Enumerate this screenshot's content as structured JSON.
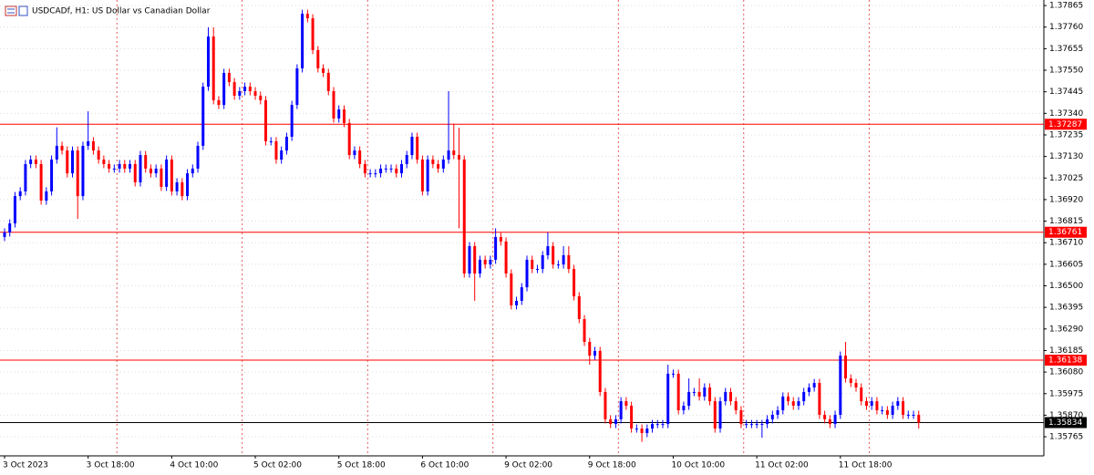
{
  "chart_data": {
    "type": "candlestick",
    "title": "USDCADf, H1:  US Dollar vs Canadian Dollar",
    "up_color": "#0000ff",
    "down_color": "#ff0000",
    "grid": true,
    "ylim": [
      1.35672,
      1.37892
    ],
    "yticks": [
      1.37865,
      {
        "value": 1.3776,
        "label": "1.37760"
      },
      1.37655,
      {
        "value": 1.3755,
        "label": "1.37550"
      },
      1.37445,
      {
        "value": 1.3734,
        "label": "1.37340"
      },
      1.37235,
      {
        "value": 1.3713,
        "label": "1.37130"
      },
      1.37025,
      {
        "value": 1.3692,
        "label": "1.36920"
      },
      1.36815,
      {
        "value": 1.3671,
        "label": "1.36710"
      },
      1.36605,
      {
        "value": 1.365,
        "label": "1.36500"
      },
      1.36395,
      {
        "value": 1.3629,
        "label": "1.36290"
      },
      1.36185,
      {
        "value": 1.3608,
        "label": "1.36080"
      },
      1.35975,
      {
        "value": 1.3587,
        "label": "1.35870"
      },
      1.35765
    ],
    "levels": [
      {
        "value": 1.37287,
        "color": "#ff0000"
      },
      {
        "value": 1.36761,
        "color": "#ff0000"
      },
      {
        "value": 1.36138,
        "color": "#ff0000"
      },
      {
        "value": 1.35834,
        "color": "#000000"
      }
    ],
    "categories": [
      "3 Oct 2023",
      null,
      null,
      null,
      null,
      null,
      null,
      null,
      null,
      null,
      null,
      null,
      null,
      null,
      null,
      null,
      "3 Oct 18:00",
      null,
      null,
      null,
      null,
      null,
      null,
      null,
      null,
      null,
      null,
      null,
      null,
      null,
      null,
      null,
      "4 Oct 10:00",
      null,
      null,
      null,
      null,
      null,
      null,
      null,
      null,
      null,
      null,
      null,
      null,
      null,
      null,
      null,
      "5 Oct 02:00",
      null,
      null,
      null,
      null,
      null,
      null,
      null,
      null,
      null,
      null,
      null,
      null,
      null,
      null,
      null,
      "5 Oct 18:00",
      null,
      null,
      null,
      null,
      null,
      null,
      null,
      null,
      null,
      null,
      null,
      null,
      null,
      null,
      null,
      "6 Oct 10:00",
      null,
      null,
      null,
      null,
      null,
      null,
      null,
      null,
      null,
      null,
      null,
      null,
      null,
      null,
      null,
      "9 Oct 02:00",
      null,
      null,
      null,
      null,
      null,
      null,
      null,
      null,
      null,
      null,
      null,
      null,
      null,
      null,
      null,
      "9 Oct 18:00",
      null,
      null,
      null,
      null,
      null,
      null,
      null,
      null,
      null,
      null,
      null,
      null,
      null,
      null,
      null,
      "10 Oct 10:00",
      null,
      null,
      null,
      null,
      null,
      null,
      null,
      null,
      null,
      null,
      null,
      null,
      null,
      null,
      null,
      "11 Oct 02:00",
      null,
      null,
      null,
      null,
      null,
      null,
      null,
      null,
      null,
      null,
      null,
      null,
      null,
      null,
      null,
      "11 Oct 18:00",
      null,
      null,
      null,
      null,
      null,
      null,
      null,
      null,
      null,
      null,
      null,
      null,
      null,
      null,
      null
    ],
    "candles": [
      [
        1.36738,
        1.3678,
        1.36718,
        1.3676
      ],
      [
        1.3676,
        1.36824,
        1.3674,
        1.36804
      ],
      [
        1.36804,
        1.36957,
        1.36784,
        1.36937
      ],
      [
        1.36937,
        1.3698,
        1.36917,
        1.3696
      ],
      [
        1.3696,
        1.37113,
        1.3694,
        1.37093
      ],
      [
        1.37093,
        1.37135,
        1.37073,
        1.37115
      ],
      [
        1.37115,
        1.37135,
        1.37073,
        1.37093
      ],
      [
        1.37093,
        1.37113,
        1.36895,
        1.36915
      ],
      [
        1.36915,
        1.3698,
        1.36895,
        1.3696
      ],
      [
        1.3696,
        1.37135,
        1.3694,
        1.37115
      ],
      [
        1.37115,
        1.37272,
        1.37095,
        1.37182
      ],
      [
        1.37182,
        1.37202,
        1.37139,
        1.37159
      ],
      [
        1.37159,
        1.37179,
        1.37028,
        1.37048
      ],
      [
        1.37048,
        1.37179,
        1.37028,
        1.37159
      ],
      [
        1.37159,
        1.37179,
        1.36826,
        1.36937
      ],
      [
        1.36937,
        1.37202,
        1.36917,
        1.37182
      ],
      [
        1.37182,
        1.3735,
        1.37162,
        1.37204
      ],
      [
        1.37204,
        1.37224,
        1.37139,
        1.37159
      ],
      [
        1.37159,
        1.37179,
        1.37095,
        1.37115
      ],
      [
        1.37115,
        1.37135,
        1.37073,
        1.37093
      ],
      [
        1.37093,
        1.37113,
        1.37051,
        1.37071
      ],
      [
        1.37071,
        1.37091,
        1.37051,
        1.37071
      ],
      [
        1.37071,
        1.37113,
        1.37051,
        1.37093
      ],
      [
        1.37093,
        1.37113,
        1.37051,
        1.37071
      ],
      [
        1.37071,
        1.37113,
        1.37051,
        1.37093
      ],
      [
        1.37093,
        1.37113,
        1.36984,
        1.37004
      ],
      [
        1.37004,
        1.37157,
        1.36984,
        1.37137
      ],
      [
        1.37137,
        1.37157,
        1.37051,
        1.37071
      ],
      [
        1.37071,
        1.37091,
        1.37028,
        1.37048
      ],
      [
        1.37048,
        1.37091,
        1.37028,
        1.37071
      ],
      [
        1.37071,
        1.37091,
        1.36962,
        1.36982
      ],
      [
        1.36982,
        1.37135,
        1.36962,
        1.37115
      ],
      [
        1.37115,
        1.37135,
        1.3694,
        1.3696
      ],
      [
        1.3696,
        1.37024,
        1.3694,
        1.37004
      ],
      [
        1.37004,
        1.37024,
        1.36917,
        1.36937
      ],
      [
        1.36937,
        1.37068,
        1.36917,
        1.37048
      ],
      [
        1.37048,
        1.37091,
        1.37028,
        1.37071
      ],
      [
        1.37071,
        1.37202,
        1.37051,
        1.37182
      ],
      [
        1.37182,
        1.3749,
        1.37162,
        1.3747
      ],
      [
        1.3747,
        1.37759,
        1.3745,
        1.37714
      ],
      [
        1.37714,
        1.37759,
        1.37384,
        1.37404
      ],
      [
        1.37404,
        1.37424,
        1.37361,
        1.37381
      ],
      [
        1.37381,
        1.37557,
        1.37361,
        1.37537
      ],
      [
        1.37537,
        1.37557,
        1.37472,
        1.37492
      ],
      [
        1.37492,
        1.37512,
        1.37406,
        1.37426
      ],
      [
        1.37426,
        1.37468,
        1.37406,
        1.37448
      ],
      [
        1.37448,
        1.3749,
        1.37428,
        1.3747
      ],
      [
        1.3747,
        1.3749,
        1.37428,
        1.37448
      ],
      [
        1.37448,
        1.37468,
        1.37406,
        1.37426
      ],
      [
        1.37426,
        1.37446,
        1.37384,
        1.37404
      ],
      [
        1.37404,
        1.37424,
        1.37184,
        1.37204
      ],
      [
        1.37204,
        1.37224,
        1.37184,
        1.37204
      ],
      [
        1.37204,
        1.37224,
        1.37095,
        1.37115
      ],
      [
        1.37115,
        1.37179,
        1.37095,
        1.37159
      ],
      [
        1.37159,
        1.37246,
        1.37139,
        1.37226
      ],
      [
        1.37226,
        1.37401,
        1.37206,
        1.37381
      ],
      [
        1.37381,
        1.37579,
        1.37361,
        1.37559
      ],
      [
        1.37559,
        1.37845,
        1.37539,
        1.37825
      ],
      [
        1.37825,
        1.37845,
        1.37783,
        1.37803
      ],
      [
        1.37803,
        1.37823,
        1.37628,
        1.37648
      ],
      [
        1.37648,
        1.37668,
        1.37539,
        1.37559
      ],
      [
        1.37559,
        1.37579,
        1.37517,
        1.37537
      ],
      [
        1.37537,
        1.37557,
        1.37428,
        1.37448
      ],
      [
        1.37448,
        1.37468,
        1.37295,
        1.37315
      ],
      [
        1.37315,
        1.37379,
        1.37295,
        1.37359
      ],
      [
        1.37359,
        1.37379,
        1.37273,
        1.37293
      ],
      [
        1.37293,
        1.37313,
        1.37117,
        1.37137
      ],
      [
        1.37137,
        1.37179,
        1.37117,
        1.37159
      ],
      [
        1.37159,
        1.37179,
        1.37073,
        1.37093
      ],
      [
        1.37093,
        1.37113,
        1.37028,
        1.37048
      ],
      [
        1.37048,
        1.37068,
        1.37028,
        1.37048
      ],
      [
        1.37048,
        1.37068,
        1.37028,
        1.37048
      ],
      [
        1.37048,
        1.37091,
        1.37028,
        1.37071
      ],
      [
        1.37071,
        1.37091,
        1.37051,
        1.37071
      ],
      [
        1.37071,
        1.37091,
        1.37051,
        1.37071
      ],
      [
        1.37071,
        1.37091,
        1.37028,
        1.37048
      ],
      [
        1.37048,
        1.37113,
        1.37028,
        1.37093
      ],
      [
        1.37093,
        1.37157,
        1.37073,
        1.37137
      ],
      [
        1.37137,
        1.37246,
        1.37117,
        1.37226
      ],
      [
        1.37226,
        1.37246,
        1.37095,
        1.37115
      ],
      [
        1.37115,
        1.37135,
        1.3694,
        1.3696
      ],
      [
        1.3696,
        1.37135,
        1.3694,
        1.37115
      ],
      [
        1.37115,
        1.37135,
        1.37073,
        1.37093
      ],
      [
        1.37093,
        1.37113,
        1.37051,
        1.37071
      ],
      [
        1.37071,
        1.37135,
        1.37051,
        1.37115
      ],
      [
        1.37115,
        1.37448,
        1.37095,
        1.37159
      ],
      [
        1.37159,
        1.3729,
        1.37117,
        1.37137
      ],
      [
        1.37137,
        1.3727,
        1.3678,
        1.37115
      ],
      [
        1.37115,
        1.37135,
        1.3654,
        1.3656
      ],
      [
        1.3656,
        1.36713,
        1.3654,
        1.36693
      ],
      [
        1.36693,
        1.36713,
        1.36427,
        1.3656
      ],
      [
        1.3656,
        1.36647,
        1.3654,
        1.36627
      ],
      [
        1.36627,
        1.36647,
        1.36584,
        1.36604
      ],
      [
        1.36604,
        1.36647,
        1.36584,
        1.36627
      ],
      [
        1.36627,
        1.3678,
        1.36607,
        1.36738
      ],
      [
        1.36738,
        1.36758,
        1.36696,
        1.36716
      ],
      [
        1.36716,
        1.36736,
        1.3654,
        1.3656
      ],
      [
        1.3656,
        1.3658,
        1.36385,
        1.36405
      ],
      [
        1.36405,
        1.36447,
        1.36385,
        1.36427
      ],
      [
        1.36427,
        1.36513,
        1.36407,
        1.36493
      ],
      [
        1.36493,
        1.36647,
        1.36473,
        1.36627
      ],
      [
        1.36627,
        1.36647,
        1.36562,
        1.36582
      ],
      [
        1.36582,
        1.36602,
        1.36562,
        1.36582
      ],
      [
        1.36582,
        1.36669,
        1.36562,
        1.36649
      ],
      [
        1.36649,
        1.3676,
        1.36629,
        1.36693
      ],
      [
        1.36693,
        1.36713,
        1.36584,
        1.36604
      ],
      [
        1.36604,
        1.36624,
        1.36584,
        1.36604
      ],
      [
        1.36604,
        1.36693,
        1.36584,
        1.36649
      ],
      [
        1.36649,
        1.36693,
        1.36562,
        1.36582
      ],
      [
        1.36582,
        1.36602,
        1.36429,
        1.36449
      ],
      [
        1.36449,
        1.36469,
        1.36318,
        1.36338
      ],
      [
        1.36338,
        1.36358,
        1.36207,
        1.36227
      ],
      [
        1.36227,
        1.36247,
        1.36116,
        1.3616
      ],
      [
        1.3616,
        1.36203,
        1.3614,
        1.36183
      ],
      [
        1.36183,
        1.36203,
        1.35963,
        1.35983
      ],
      [
        1.35983,
        1.36003,
        1.3583,
        1.3585
      ],
      [
        1.3585,
        1.3587,
        1.35807,
        1.35827
      ],
      [
        1.35827,
        1.3587,
        1.35807,
        1.3585
      ],
      [
        1.3585,
        1.35958,
        1.3583,
        1.35938
      ],
      [
        1.35938,
        1.35958,
        1.35896,
        1.35916
      ],
      [
        1.35916,
        1.35936,
        1.35785,
        1.35805
      ],
      [
        1.35805,
        1.35825,
        1.35785,
        1.35805
      ],
      [
        1.35805,
        1.35825,
        1.3574,
        1.35783
      ],
      [
        1.35783,
        1.35825,
        1.35763,
        1.35805
      ],
      [
        1.35805,
        1.35847,
        1.35785,
        1.35827
      ],
      [
        1.35827,
        1.35847,
        1.35807,
        1.35827
      ],
      [
        1.35827,
        1.35847,
        1.35807,
        1.35827
      ],
      [
        1.35827,
        1.36116,
        1.35807,
        1.36072
      ],
      [
        1.36072,
        1.36092,
        1.36052,
        1.36072
      ],
      [
        1.36072,
        1.36092,
        1.35874,
        1.35894
      ],
      [
        1.35894,
        1.35936,
        1.35874,
        1.35916
      ],
      [
        1.35916,
        1.36049,
        1.35896,
        1.35983
      ],
      [
        1.35983,
        1.36003,
        1.35963,
        1.35983
      ],
      [
        1.35983,
        1.36049,
        1.35941,
        1.35961
      ],
      [
        1.35961,
        1.36025,
        1.35941,
        1.36005
      ],
      [
        1.36005,
        1.36025,
        1.35918,
        1.35938
      ],
      [
        1.35938,
        1.35958,
        1.35785,
        1.35805
      ],
      [
        1.35805,
        1.35958,
        1.35785,
        1.35938
      ],
      [
        1.35938,
        1.36003,
        1.35918,
        1.35983
      ],
      [
        1.35983,
        1.36003,
        1.35918,
        1.35938
      ],
      [
        1.35938,
        1.35958,
        1.35874,
        1.35894
      ],
      [
        1.35894,
        1.35914,
        1.35807,
        1.35827
      ],
      [
        1.35827,
        1.35847,
        1.35807,
        1.35827
      ],
      [
        1.35827,
        1.35847,
        1.35807,
        1.35827
      ],
      [
        1.35827,
        1.35847,
        1.35807,
        1.35827
      ],
      [
        1.35827,
        1.35847,
        1.3576,
        1.35827
      ],
      [
        1.35827,
        1.3587,
        1.35807,
        1.3585
      ],
      [
        1.3585,
        1.35892,
        1.3583,
        1.35872
      ],
      [
        1.35872,
        1.35914,
        1.35852,
        1.35894
      ],
      [
        1.35894,
        1.35981,
        1.35874,
        1.35961
      ],
      [
        1.35961,
        1.35981,
        1.35918,
        1.35938
      ],
      [
        1.35938,
        1.35958,
        1.35896,
        1.35916
      ],
      [
        1.35916,
        1.35958,
        1.35896,
        1.35938
      ],
      [
        1.35938,
        1.36003,
        1.35918,
        1.35983
      ],
      [
        1.35983,
        1.36025,
        1.35963,
        1.36005
      ],
      [
        1.36005,
        1.36047,
        1.35985,
        1.36027
      ],
      [
        1.36027,
        1.36047,
        1.35852,
        1.35872
      ],
      [
        1.35872,
        1.35892,
        1.3583,
        1.3585
      ],
      [
        1.3585,
        1.3587,
        1.35807,
        1.35827
      ],
      [
        1.35827,
        1.35892,
        1.35807,
        1.35872
      ],
      [
        1.35872,
        1.3618,
        1.35852,
        1.3616
      ],
      [
        1.3616,
        1.36227,
        1.36029,
        1.36049
      ],
      [
        1.36049,
        1.36069,
        1.36007,
        1.36027
      ],
      [
        1.36027,
        1.36047,
        1.35985,
        1.36005
      ],
      [
        1.36005,
        1.36025,
        1.35918,
        1.35938
      ],
      [
        1.35938,
        1.35958,
        1.35896,
        1.35916
      ],
      [
        1.35916,
        1.35958,
        1.35896,
        1.35938
      ],
      [
        1.35938,
        1.35958,
        1.35874,
        1.35894
      ],
      [
        1.35894,
        1.35914,
        1.35874,
        1.35894
      ],
      [
        1.35894,
        1.35914,
        1.35852,
        1.35872
      ],
      [
        1.35872,
        1.35936,
        1.35852,
        1.35916
      ],
      [
        1.35916,
        1.35958,
        1.35896,
        1.35938
      ],
      [
        1.35938,
        1.35958,
        1.35852,
        1.35872
      ],
      [
        1.35872,
        1.35892,
        1.35852,
        1.35872
      ],
      [
        1.35872,
        1.35892,
        1.35852,
        1.35872
      ],
      [
        1.35872,
        1.35892,
        1.35805,
        1.35834
      ]
    ]
  }
}
